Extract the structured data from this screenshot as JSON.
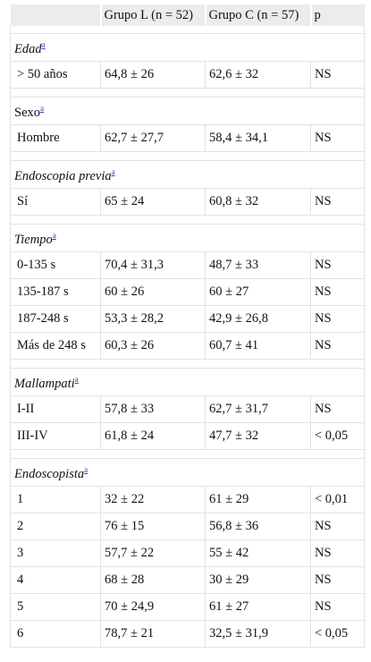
{
  "header": {
    "col1": "",
    "col2": "Grupo L (n = 52)",
    "col3": "Grupo C (n = 57)",
    "col4": "p"
  },
  "sections": [
    {
      "title": "Edad",
      "italic": true,
      "rows": [
        {
          "label": "> 50 años",
          "l": "64,8 ± 26",
          "c": "62,6 ± 32",
          "p": "NS"
        }
      ]
    },
    {
      "title": "Sexo",
      "italic": false,
      "rows": [
        {
          "label": "Hombre",
          "l": "62,7 ± 27,7",
          "c": "58,4 ± 34,1",
          "p": "NS"
        }
      ]
    },
    {
      "title": "Endoscopia previa",
      "italic": true,
      "rows": [
        {
          "label": "Sí",
          "l": "65 ± 24",
          "c": "60,8 ± 32",
          "p": "NS"
        }
      ]
    },
    {
      "title": "Tiempo",
      "italic": true,
      "rows": [
        {
          "label": "0-135 s",
          "l": "70,4 ± 31,3",
          "c": "48,7 ± 33",
          "p": "NS"
        },
        {
          "label": "135-187 s",
          "l": "60 ± 26",
          "c": "60 ± 27",
          "p": "NS"
        },
        {
          "label": "187-248 s",
          "l": "53,3 ± 28,2",
          "c": "42,9 ± 26,8",
          "p": "NS"
        },
        {
          "label": "Más de 248 s",
          "l": "60,3 ± 26",
          "c": "60,7 ± 41",
          "p": "NS"
        }
      ]
    },
    {
      "title": "Mallampati",
      "italic": true,
      "rows": [
        {
          "label": "I-II",
          "l": "57,8 ± 33",
          "c": "62,7 ± 31,7",
          "p": "NS"
        },
        {
          "label": "III-IV",
          "l": "61,8 ± 24",
          "c": "47,7 ± 32",
          "p": "< 0,05"
        }
      ]
    },
    {
      "title": "Endoscopista",
      "italic": true,
      "rows": [
        {
          "label": "1",
          "l": "32 ± 22",
          "c": "61 ± 29",
          "p": "< 0,01"
        },
        {
          "label": "2",
          "l": "76 ± 15",
          "c": "56,8 ± 36",
          "p": "NS"
        },
        {
          "label": "3",
          "l": "57,7 ± 22",
          "c": "55 ± 42",
          "p": "NS"
        },
        {
          "label": "4",
          "l": "68 ± 28",
          "c": "30 ± 29",
          "p": "NS"
        },
        {
          "label": "5",
          "l": "70 ± 24,9",
          "c": "61 ± 27",
          "p": "NS"
        },
        {
          "label": "6",
          "l": "78,7 ± 21",
          "c": "32,5 ± 31,9",
          "p": "< 0,05"
        }
      ]
    }
  ],
  "footnote_marker": "a",
  "colors": {
    "header_bg": "#ececec",
    "border": "#e2e2e2",
    "link": "#2a3bd1"
  }
}
